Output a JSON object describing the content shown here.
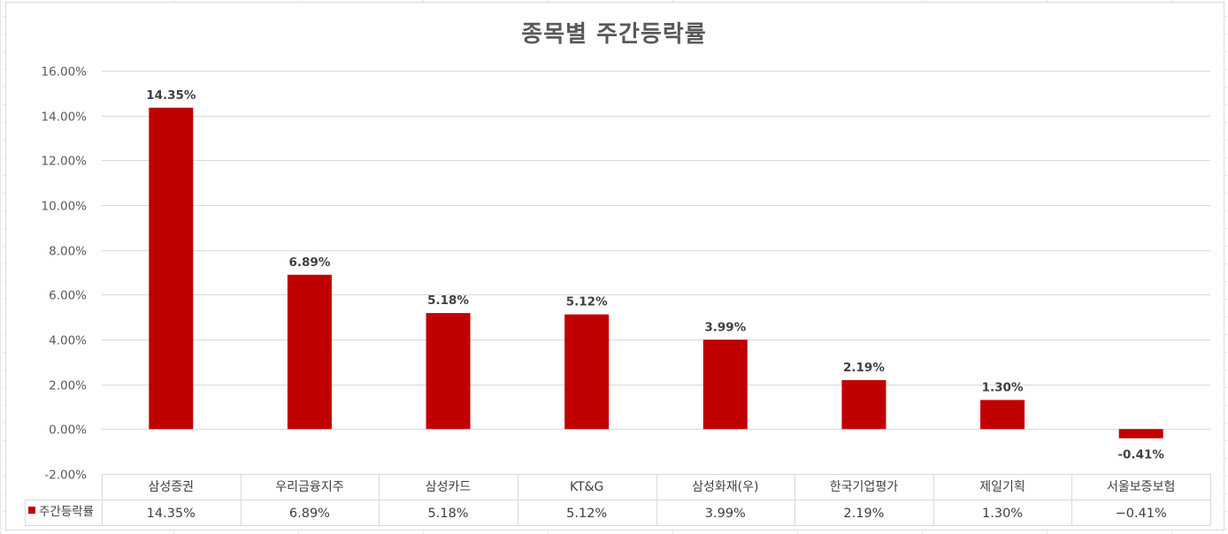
{
  "chart_data": {
    "type": "bar",
    "title": "종목별 주간등락률",
    "categories": [
      "삼성증권",
      "우리금융지주",
      "삼성카드",
      "KT&G",
      "삼성화재(우)",
      "한국기업평가",
      "제일기획",
      "서울보증보험"
    ],
    "series": [
      {
        "name": "주간등락률",
        "color": "#c00000",
        "values": [
          14.35,
          6.89,
          5.18,
          5.12,
          3.99,
          2.19,
          1.3,
          -0.41
        ],
        "labels": [
          "14.35%",
          "6.89%",
          "5.18%",
          "5.12%",
          "3.99%",
          "2.19%",
          "1.30%",
          "-0.41%"
        ],
        "table_values": [
          "14.35%",
          "6.89%",
          "5.18%",
          "5.12%",
          "3.99%",
          "2.19%",
          "1.30%",
          "−0.41%"
        ]
      }
    ],
    "ylim": [
      -2,
      16
    ],
    "yticks": [
      "16.00%",
      "14.00%",
      "12.00%",
      "10.00%",
      "8.00%",
      "6.00%",
      "4.00%",
      "2.00%",
      "0.00%",
      "-2.00%"
    ],
    "ytick_values": [
      16,
      14,
      12,
      10,
      8,
      6,
      4,
      2,
      0,
      -2
    ],
    "grid": true,
    "legend": "data-table"
  }
}
